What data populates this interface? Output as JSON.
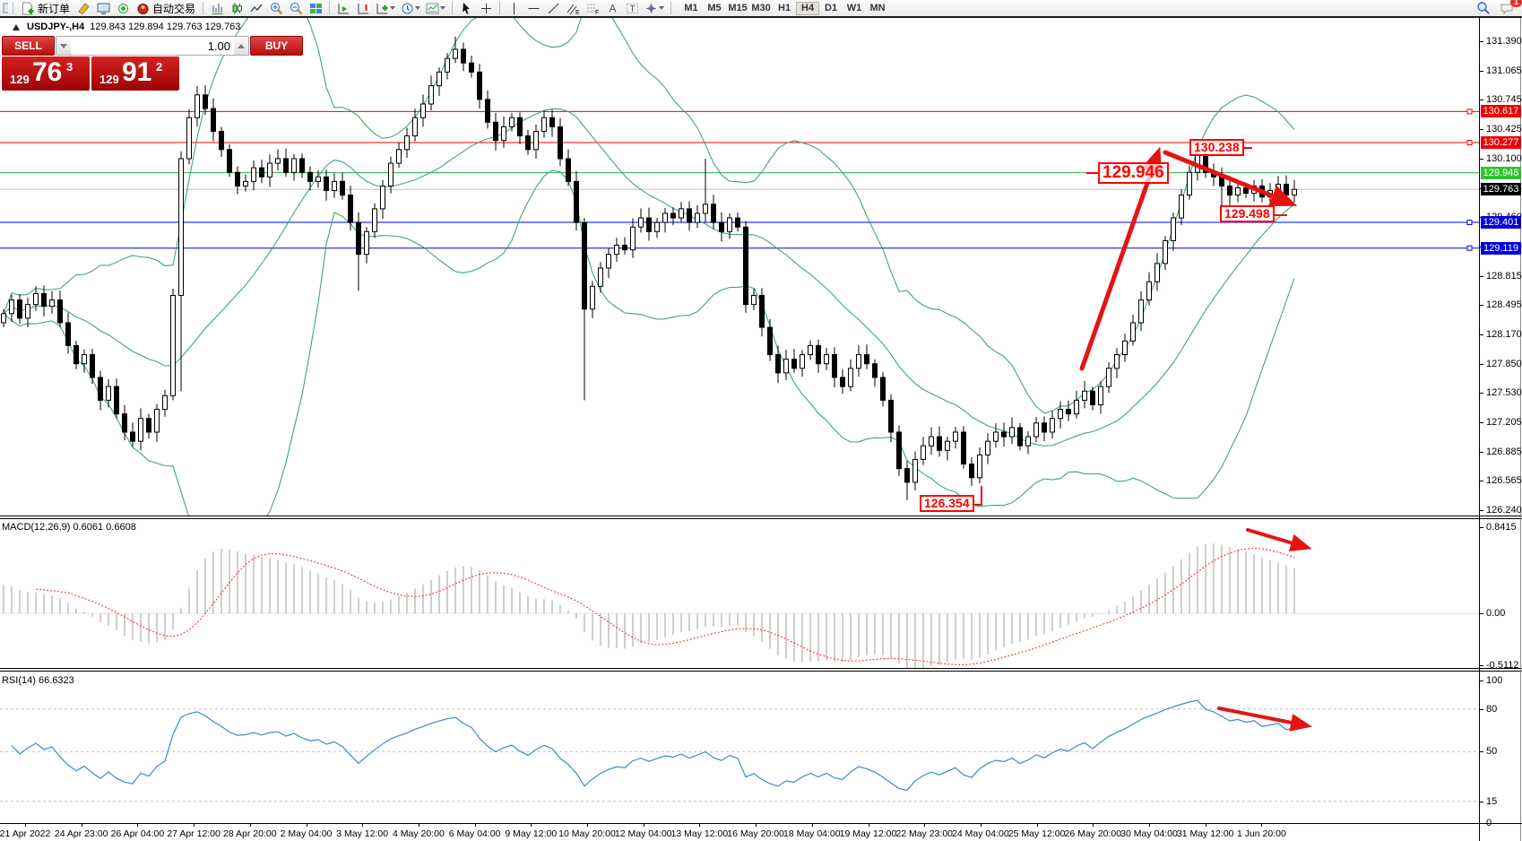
{
  "toolbar": {
    "new_order_label": "新订单",
    "autotrading_label": "自动交易",
    "timeframes": [
      "M1",
      "M5",
      "M15",
      "M30",
      "H1",
      "H4",
      "D1",
      "W1",
      "MN"
    ],
    "active_timeframe": "H4",
    "chat_badge": "1",
    "glyphs": {
      "channel": "E",
      "fibonacci": "F",
      "text": "A",
      "label": "T"
    }
  },
  "one_click": {
    "sell_label": "SELL",
    "buy_label": "BUY",
    "volume": "1.00",
    "bid_small": "129",
    "bid_big": "76",
    "bid_sup": "3",
    "ask_small": "129",
    "ask_big": "91",
    "ask_sup": "2"
  },
  "chart_header": {
    "symbol": "USDJPY-,H4",
    "ohlc": "129.843 129.894 129.763 129.763"
  },
  "indicators": {
    "macd_label": "MACD(12,26,9) 0.6061 0.6608",
    "rsi_label": "RSI(14) 66.6323"
  },
  "axis": {
    "price_ticks": [
      "131.390",
      "131.065",
      "130.745",
      "130.425",
      "130.100",
      "129.775",
      "129.460",
      "129.140",
      "128.815",
      "128.495",
      "128.170",
      "127.850",
      "127.530",
      "127.205",
      "126.885",
      "126.565",
      "126.240"
    ],
    "badges": [
      {
        "text": "130.617",
        "bg": "#ee0000"
      },
      {
        "text": "130.277",
        "bg": "#ee0000"
      },
      {
        "text": "129.946",
        "bg": "#2fc42f"
      },
      {
        "text": "129.763",
        "bg": "#000000"
      },
      {
        "text": "129.401",
        "bg": "#0000dd"
      },
      {
        "text": "129.119",
        "bg": "#0000dd"
      }
    ],
    "macd_ticks": [
      "0.8415",
      "0.00",
      "-0.5112"
    ],
    "rsi_ticks": [
      "100",
      "80",
      "50",
      "15",
      "0"
    ]
  },
  "chart_data": {
    "type": "candlestick",
    "symbol": "USDJPY",
    "timeframe": "H4",
    "title": "USDJPY-,H4",
    "ylim": [
      126.185,
      131.644
    ],
    "y_ticks": [
      131.39,
      131.065,
      130.745,
      130.425,
      130.1,
      129.775,
      129.46,
      129.14,
      128.815,
      128.495,
      128.17,
      127.85,
      127.53,
      127.205,
      126.885,
      126.565,
      126.24
    ],
    "first_open": 128.3,
    "closes": [
      128.4,
      128.55,
      128.35,
      128.5,
      128.62,
      128.48,
      128.55,
      128.3,
      128.05,
      127.85,
      127.95,
      127.7,
      127.45,
      127.6,
      127.3,
      127.1,
      127.0,
      127.25,
      127.1,
      127.35,
      127.5,
      128.6,
      130.1,
      130.55,
      130.8,
      130.65,
      130.4,
      130.2,
      129.95,
      129.8,
      129.85,
      130.0,
      129.9,
      130.05,
      130.1,
      129.95,
      130.1,
      129.95,
      129.85,
      129.9,
      129.75,
      129.85,
      129.7,
      129.4,
      129.05,
      129.3,
      129.55,
      129.8,
      130.05,
      130.2,
      130.35,
      130.55,
      130.7,
      130.9,
      131.05,
      131.2,
      131.3,
      131.15,
      131.05,
      130.75,
      130.5,
      130.3,
      130.45,
      130.55,
      130.35,
      130.2,
      130.4,
      130.55,
      130.45,
      130.1,
      129.85,
      129.4,
      128.45,
      128.7,
      128.9,
      129.05,
      129.15,
      129.1,
      129.35,
      129.45,
      129.3,
      129.4,
      129.5,
      129.45,
      129.55,
      129.4,
      129.5,
      129.6,
      129.4,
      129.3,
      129.45,
      129.35,
      128.5,
      128.6,
      128.25,
      127.95,
      127.75,
      127.9,
      127.8,
      127.95,
      128.05,
      127.85,
      127.95,
      127.7,
      127.6,
      127.8,
      127.95,
      127.85,
      127.7,
      127.45,
      127.1,
      126.7,
      126.55,
      126.8,
      126.95,
      127.05,
      126.9,
      127.0,
      127.1,
      126.75,
      126.6,
      126.85,
      127.0,
      127.1,
      127.05,
      127.15,
      126.95,
      127.05,
      127.2,
      127.1,
      127.25,
      127.35,
      127.3,
      127.45,
      127.55,
      127.4,
      127.6,
      127.8,
      127.95,
      128.1,
      128.3,
      128.55,
      128.75,
      128.95,
      129.2,
      129.45,
      129.7,
      129.95,
      130.15,
      129.95,
      129.9,
      129.8,
      129.7,
      129.78,
      129.72,
      129.8,
      129.68,
      129.75,
      129.82,
      129.7,
      129.763
    ],
    "wick_overrides": {
      "22": {
        "low": 127.55
      },
      "44": {
        "low": 128.65
      },
      "56": {
        "high": 131.44
      },
      "72": {
        "low": 127.45
      },
      "87": {
        "high": 130.1
      },
      "112": {
        "low": 126.354
      },
      "148": {
        "high": 130.238
      },
      "151": {
        "low": 129.498
      }
    },
    "hlines": [
      {
        "price": 130.617,
        "color": "#ee0000",
        "handle": true
      },
      {
        "price": 130.277,
        "color": "#ee0000",
        "handle": true
      },
      {
        "price": 129.946,
        "color": "#22b14c",
        "handle": false
      },
      {
        "price": 129.763,
        "color": "#c0c0c0",
        "handle": false
      },
      {
        "price": 129.401,
        "color": "#0000dd",
        "handle": true
      },
      {
        "price": 129.119,
        "color": "#0000dd",
        "handle": true
      }
    ],
    "bollinger": {
      "period": 20,
      "deviation": 2,
      "color": "#46a472"
    },
    "macd": {
      "fast": 12,
      "slow": 26,
      "signal": 9,
      "value": 0.6061,
      "signal_value": 0.6608,
      "ylim": [
        -0.5112,
        0.8415
      ],
      "hist_color": "#b9b9b9",
      "signal_color": "#ff2020"
    },
    "rsi": {
      "period": 14,
      "value": 66.6323,
      "ylim": [
        0,
        100
      ],
      "levels": [
        80,
        50,
        15
      ],
      "color": "#3f86d2"
    },
    "annotations": [
      {
        "text": "129.946"
      },
      {
        "text": "130.238"
      },
      {
        "text": "129.498"
      },
      {
        "text": "126.354"
      }
    ],
    "x_labels": [
      "21 Apr 2022",
      "24 Apr 23:00",
      "26 Apr 04:00",
      "27 Apr 12:00",
      "28 Apr 20:00",
      "2 May 04:00",
      "3 May 12:00",
      "4 May 20:00",
      "6 May 04:00",
      "9 May 12:00",
      "10 May 20:00",
      "12 May 04:00",
      "13 May 12:00",
      "16 May 20:00",
      "18 May 04:00",
      "19 May 12:00",
      "22 May 23:00",
      "24 May 04:00",
      "25 May 12:00",
      "26 May 20:00",
      "30 May 04:00",
      "31 May 12:00",
      "1 Jun 20:00"
    ]
  }
}
